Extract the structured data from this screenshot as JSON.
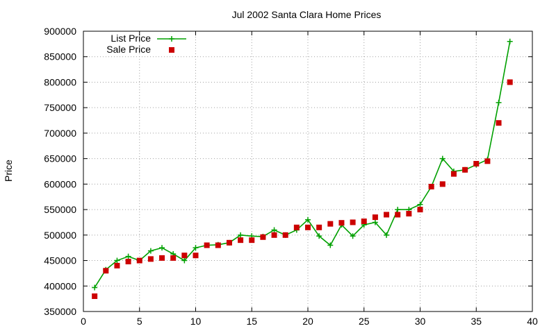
{
  "chart_data": {
    "type": "line",
    "title": "Jul 2002 Santa Clara Home Prices",
    "xlabel": "",
    "ylabel": "Price",
    "xlim": [
      0,
      40
    ],
    "ylim": [
      350000,
      900000
    ],
    "x_ticks": [
      0,
      5,
      10,
      15,
      20,
      25,
      30,
      35,
      40
    ],
    "y_ticks": [
      350000,
      400000,
      450000,
      500000,
      550000,
      600000,
      650000,
      700000,
      750000,
      800000,
      850000,
      900000
    ],
    "grid": true,
    "legend_position": "top-left",
    "series": [
      {
        "name": "List Price",
        "style": "line+cross",
        "color": "#00a000",
        "x": [
          1,
          2,
          3,
          4,
          5,
          6,
          7,
          8,
          9,
          10,
          11,
          12,
          13,
          14,
          15,
          16,
          17,
          18,
          19,
          20,
          21,
          22,
          23,
          24,
          25,
          26,
          27,
          28,
          29,
          30,
          31,
          32,
          33,
          34,
          35,
          36,
          37,
          38
        ],
        "y": [
          397000,
          432000,
          450000,
          458000,
          450000,
          469000,
          475000,
          463000,
          450000,
          475000,
          480000,
          481000,
          485000,
          500000,
          498000,
          497000,
          510000,
          500000,
          510000,
          530000,
          498000,
          480000,
          520000,
          498000,
          520000,
          525000,
          500000,
          550000,
          550000,
          560000,
          595000,
          650000,
          625000,
          628000,
          638000,
          648000,
          760000,
          880000
        ]
      },
      {
        "name": "Sale Price",
        "style": "square",
        "color": "#cc0000",
        "x": [
          1,
          2,
          3,
          4,
          5,
          6,
          7,
          8,
          9,
          10,
          11,
          12,
          13,
          14,
          15,
          16,
          17,
          18,
          19,
          20,
          21,
          22,
          23,
          24,
          25,
          26,
          27,
          28,
          29,
          30,
          31,
          32,
          33,
          34,
          35,
          36,
          37,
          38
        ],
        "y": [
          380000,
          430000,
          440000,
          448000,
          450000,
          453000,
          455000,
          455000,
          460000,
          460000,
          480000,
          480000,
          485000,
          490000,
          490000,
          496000,
          500000,
          500000,
          515000,
          515000,
          515000,
          522000,
          524000,
          525000,
          527000,
          535000,
          540000,
          540000,
          542000,
          550000,
          595000,
          600000,
          620000,
          628000,
          640000,
          645000,
          720000,
          800000
        ]
      }
    ]
  }
}
